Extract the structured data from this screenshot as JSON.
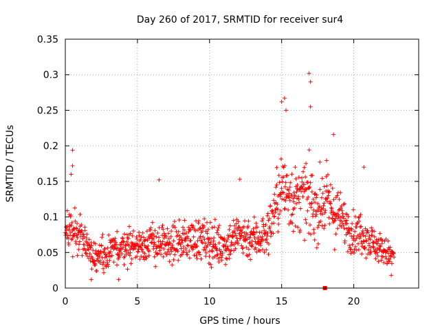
{
  "chart_data": {
    "type": "scatter",
    "title": "Day 260 of 2017, SRMTID for receiver sur4",
    "xlabel": "GPS time / hours",
    "ylabel": "SRMTID / TECUs",
    "xlim": [
      0,
      24.5
    ],
    "ylim": [
      0,
      0.35
    ],
    "xticks": [
      "0",
      "5",
      "10",
      "15",
      "20"
    ],
    "xtick_values": [
      0,
      5,
      10,
      15,
      20
    ],
    "yticks": [
      "0",
      "0.05",
      "0.1",
      "0.15",
      "0.2",
      "0.25",
      "0.3",
      "0.35"
    ],
    "ytick_values": [
      0,
      0.05,
      0.1,
      0.15,
      0.2,
      0.25,
      0.3,
      0.35
    ],
    "grid": true,
    "marker": "plus",
    "color": "#ff0000",
    "series": [
      {
        "name": "SRMTID",
        "profile": {
          "x": [
            0.0,
            0.4,
            0.8,
            1.2,
            1.6,
            2.0,
            3.0,
            4.0,
            5.0,
            6.0,
            7.0,
            8.0,
            9.0,
            10.0,
            11.0,
            12.0,
            13.0,
            14.0,
            14.5,
            15.0,
            15.5,
            16.0,
            16.5,
            17.0,
            17.5,
            18.0,
            18.5,
            19.0,
            19.5,
            20.0,
            20.5,
            21.0,
            21.5,
            22.0,
            22.5,
            22.8
          ],
          "median": [
            0.075,
            0.085,
            0.08,
            0.075,
            0.055,
            0.045,
            0.05,
            0.06,
            0.06,
            0.065,
            0.06,
            0.065,
            0.07,
            0.065,
            0.06,
            0.075,
            0.07,
            0.075,
            0.11,
            0.14,
            0.135,
            0.12,
            0.13,
            0.12,
            0.11,
            0.125,
            0.11,
            0.1,
            0.09,
            0.075,
            0.08,
            0.07,
            0.06,
            0.055,
            0.045,
            0.045
          ],
          "spread": [
            0.025,
            0.03,
            0.028,
            0.025,
            0.022,
            0.02,
            0.022,
            0.024,
            0.024,
            0.026,
            0.025,
            0.025,
            0.028,
            0.03,
            0.028,
            0.03,
            0.03,
            0.03,
            0.04,
            0.05,
            0.05,
            0.045,
            0.045,
            0.05,
            0.045,
            0.045,
            0.045,
            0.035,
            0.03,
            0.028,
            0.028,
            0.025,
            0.022,
            0.02,
            0.018,
            0.018
          ]
        },
        "notable_points": [
          {
            "x": 0.5,
            "y": 0.194
          },
          {
            "x": 0.5,
            "y": 0.172
          },
          {
            "x": 0.4,
            "y": 0.16
          },
          {
            "x": 6.5,
            "y": 0.152
          },
          {
            "x": 12.1,
            "y": 0.153
          },
          {
            "x": 15.0,
            "y": 0.262
          },
          {
            "x": 15.2,
            "y": 0.267
          },
          {
            "x": 15.3,
            "y": 0.25
          },
          {
            "x": 16.9,
            "y": 0.302
          },
          {
            "x": 17.0,
            "y": 0.29
          },
          {
            "x": 17.0,
            "y": 0.255
          },
          {
            "x": 18.6,
            "y": 0.216
          },
          {
            "x": 20.7,
            "y": 0.17
          },
          {
            "x": 3.7,
            "y": 0.012
          },
          {
            "x": 1.8,
            "y": 0.012
          },
          {
            "x": 22.6,
            "y": 0.018
          }
        ],
        "count": 1150
      }
    ],
    "extra_marker": {
      "x": 18.0,
      "y": 0.0,
      "shape": "square"
    }
  }
}
